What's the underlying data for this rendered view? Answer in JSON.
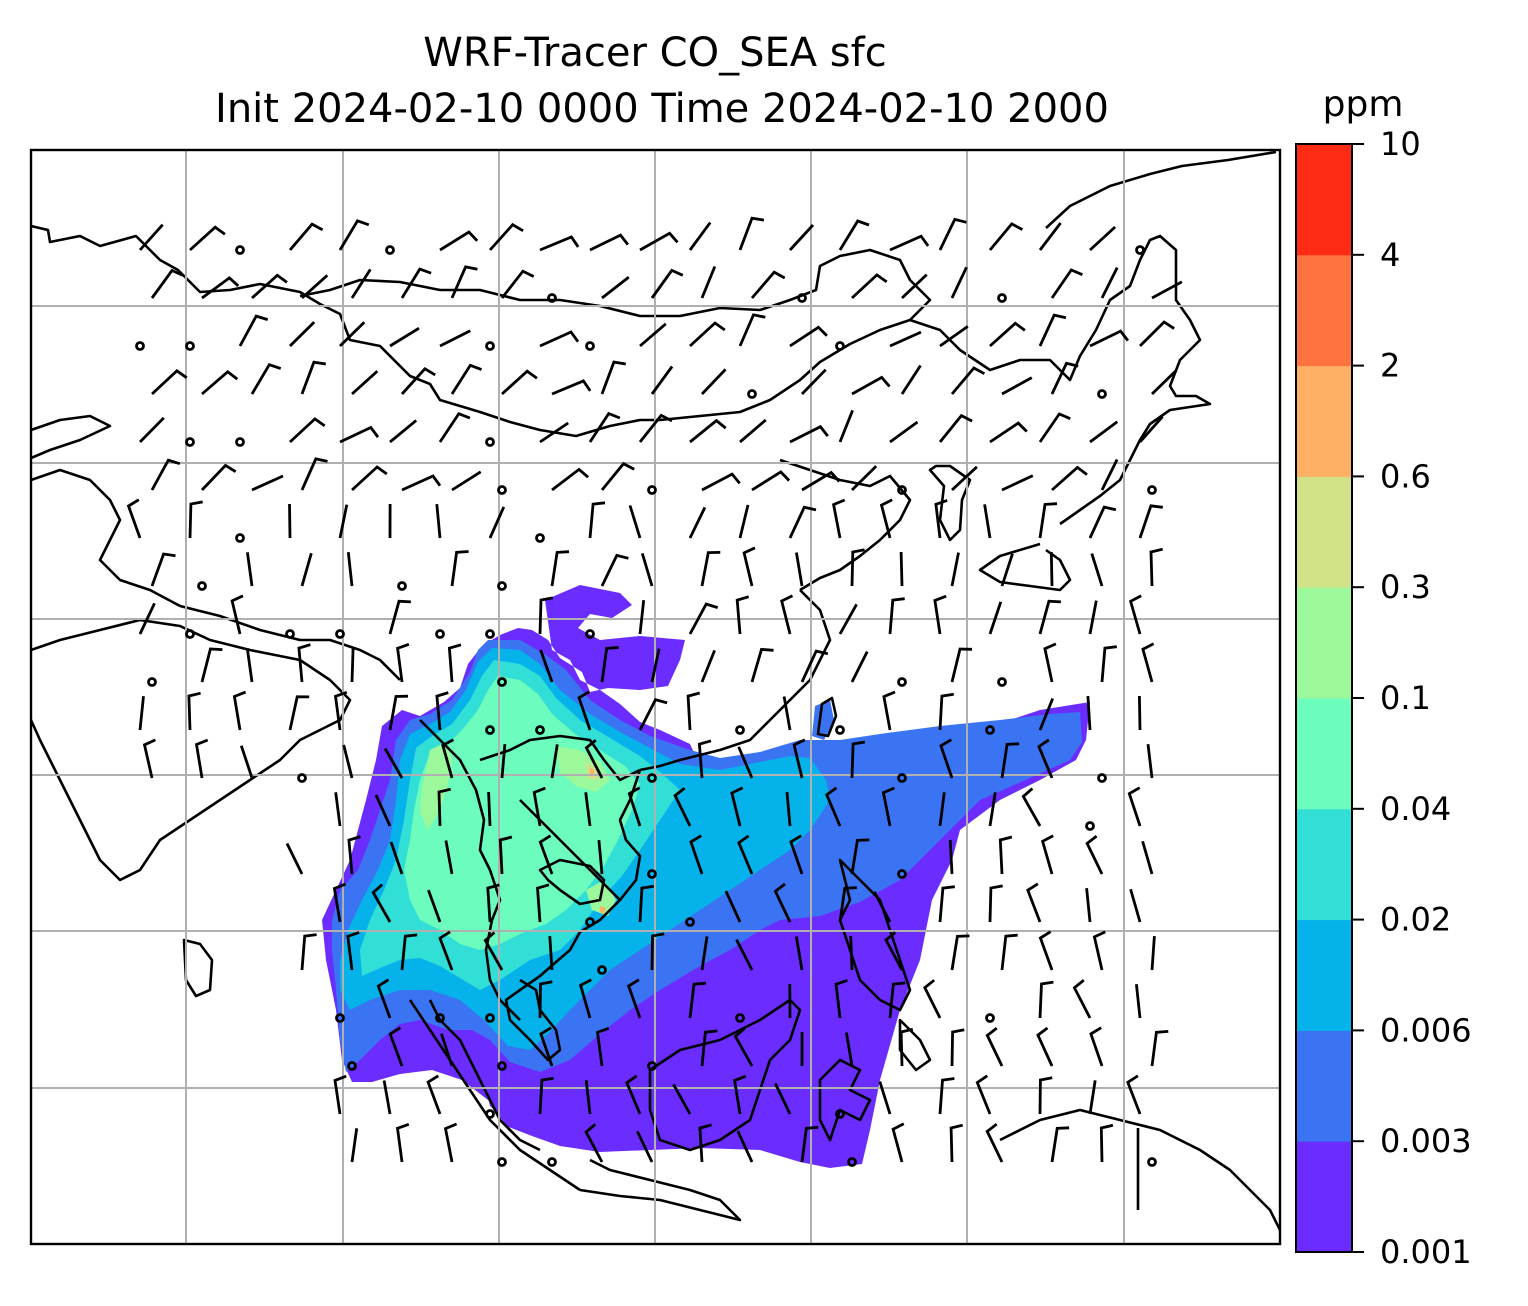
{
  "title": {
    "line1": "WRF-Tracer CO_SEA sfc",
    "line2": "Init 2024-02-10 0000 Time 2024-02-10 2000"
  },
  "colorbar": {
    "unit": "ppm",
    "ticks": [
      "10",
      "4",
      "2",
      "0.6",
      "0.3",
      "0.1",
      "0.04",
      "0.02",
      "0.006",
      "0.003",
      "0.001"
    ],
    "colors": [
      "#6a2cff",
      "#3a74f2",
      "#06b2ea",
      "#32dfd6",
      "#6cfcbd",
      "#9cf99b",
      "#d0e187",
      "#feb164",
      "#ff7340",
      "#ff2c15"
    ]
  },
  "map": {
    "land_line_color": "#000000",
    "grid_color": "#b0b0b0",
    "wind_barbs": "black"
  }
}
